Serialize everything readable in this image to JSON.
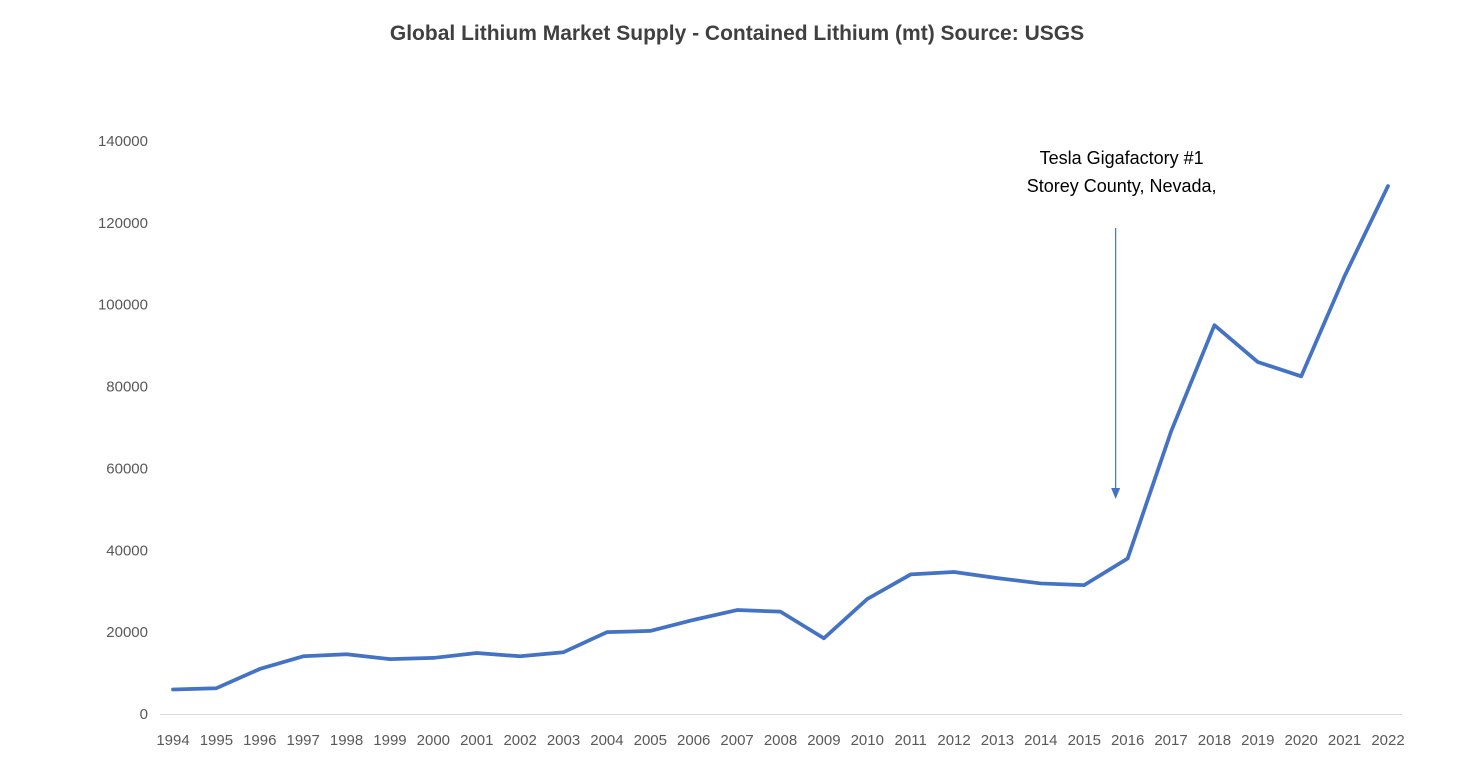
{
  "title": "Global Lithium Market Supply - Contained Lithium (mt) Source: USGS",
  "annotation": {
    "line1": "Tesla Gigafactory #1",
    "line2": "Storey County, Nevada,"
  },
  "chart_data": {
    "type": "line",
    "title": "Global Lithium Market Supply - Contained Lithium (mt) Source: USGS",
    "x": [
      1994,
      1995,
      1996,
      1997,
      1998,
      1999,
      2000,
      2001,
      2002,
      2003,
      2004,
      2005,
      2006,
      2007,
      2008,
      2009,
      2010,
      2011,
      2012,
      2013,
      2014,
      2015,
      2016,
      2017,
      2018,
      2019,
      2020,
      2021,
      2022
    ],
    "values": [
      6000,
      6300,
      11000,
      14100,
      14600,
      13400,
      13700,
      14900,
      14100,
      15100,
      20000,
      20300,
      23000,
      25400,
      25000,
      18500,
      28100,
      34100,
      34700,
      33200,
      31900,
      31500,
      38000,
      69000,
      95000,
      86000,
      82500,
      107000,
      129000
    ],
    "ylim": [
      0,
      140000
    ],
    "ytick_step": 20000,
    "yticks": [
      0,
      20000,
      40000,
      60000,
      80000,
      100000,
      120000,
      140000
    ],
    "grid": false,
    "legend": "none",
    "line_color": "#4472C4",
    "axis_label_color": "#595959",
    "axis_line_color": "#D9D9D9",
    "annotation": {
      "text": [
        "Tesla Gigafactory #1",
        "Storey County, Nevada,"
      ],
      "text_color": "#000000",
      "arrow_color": "#4472C4",
      "arrow_x_year": 2016,
      "points_to_value_near": 55000
    }
  }
}
